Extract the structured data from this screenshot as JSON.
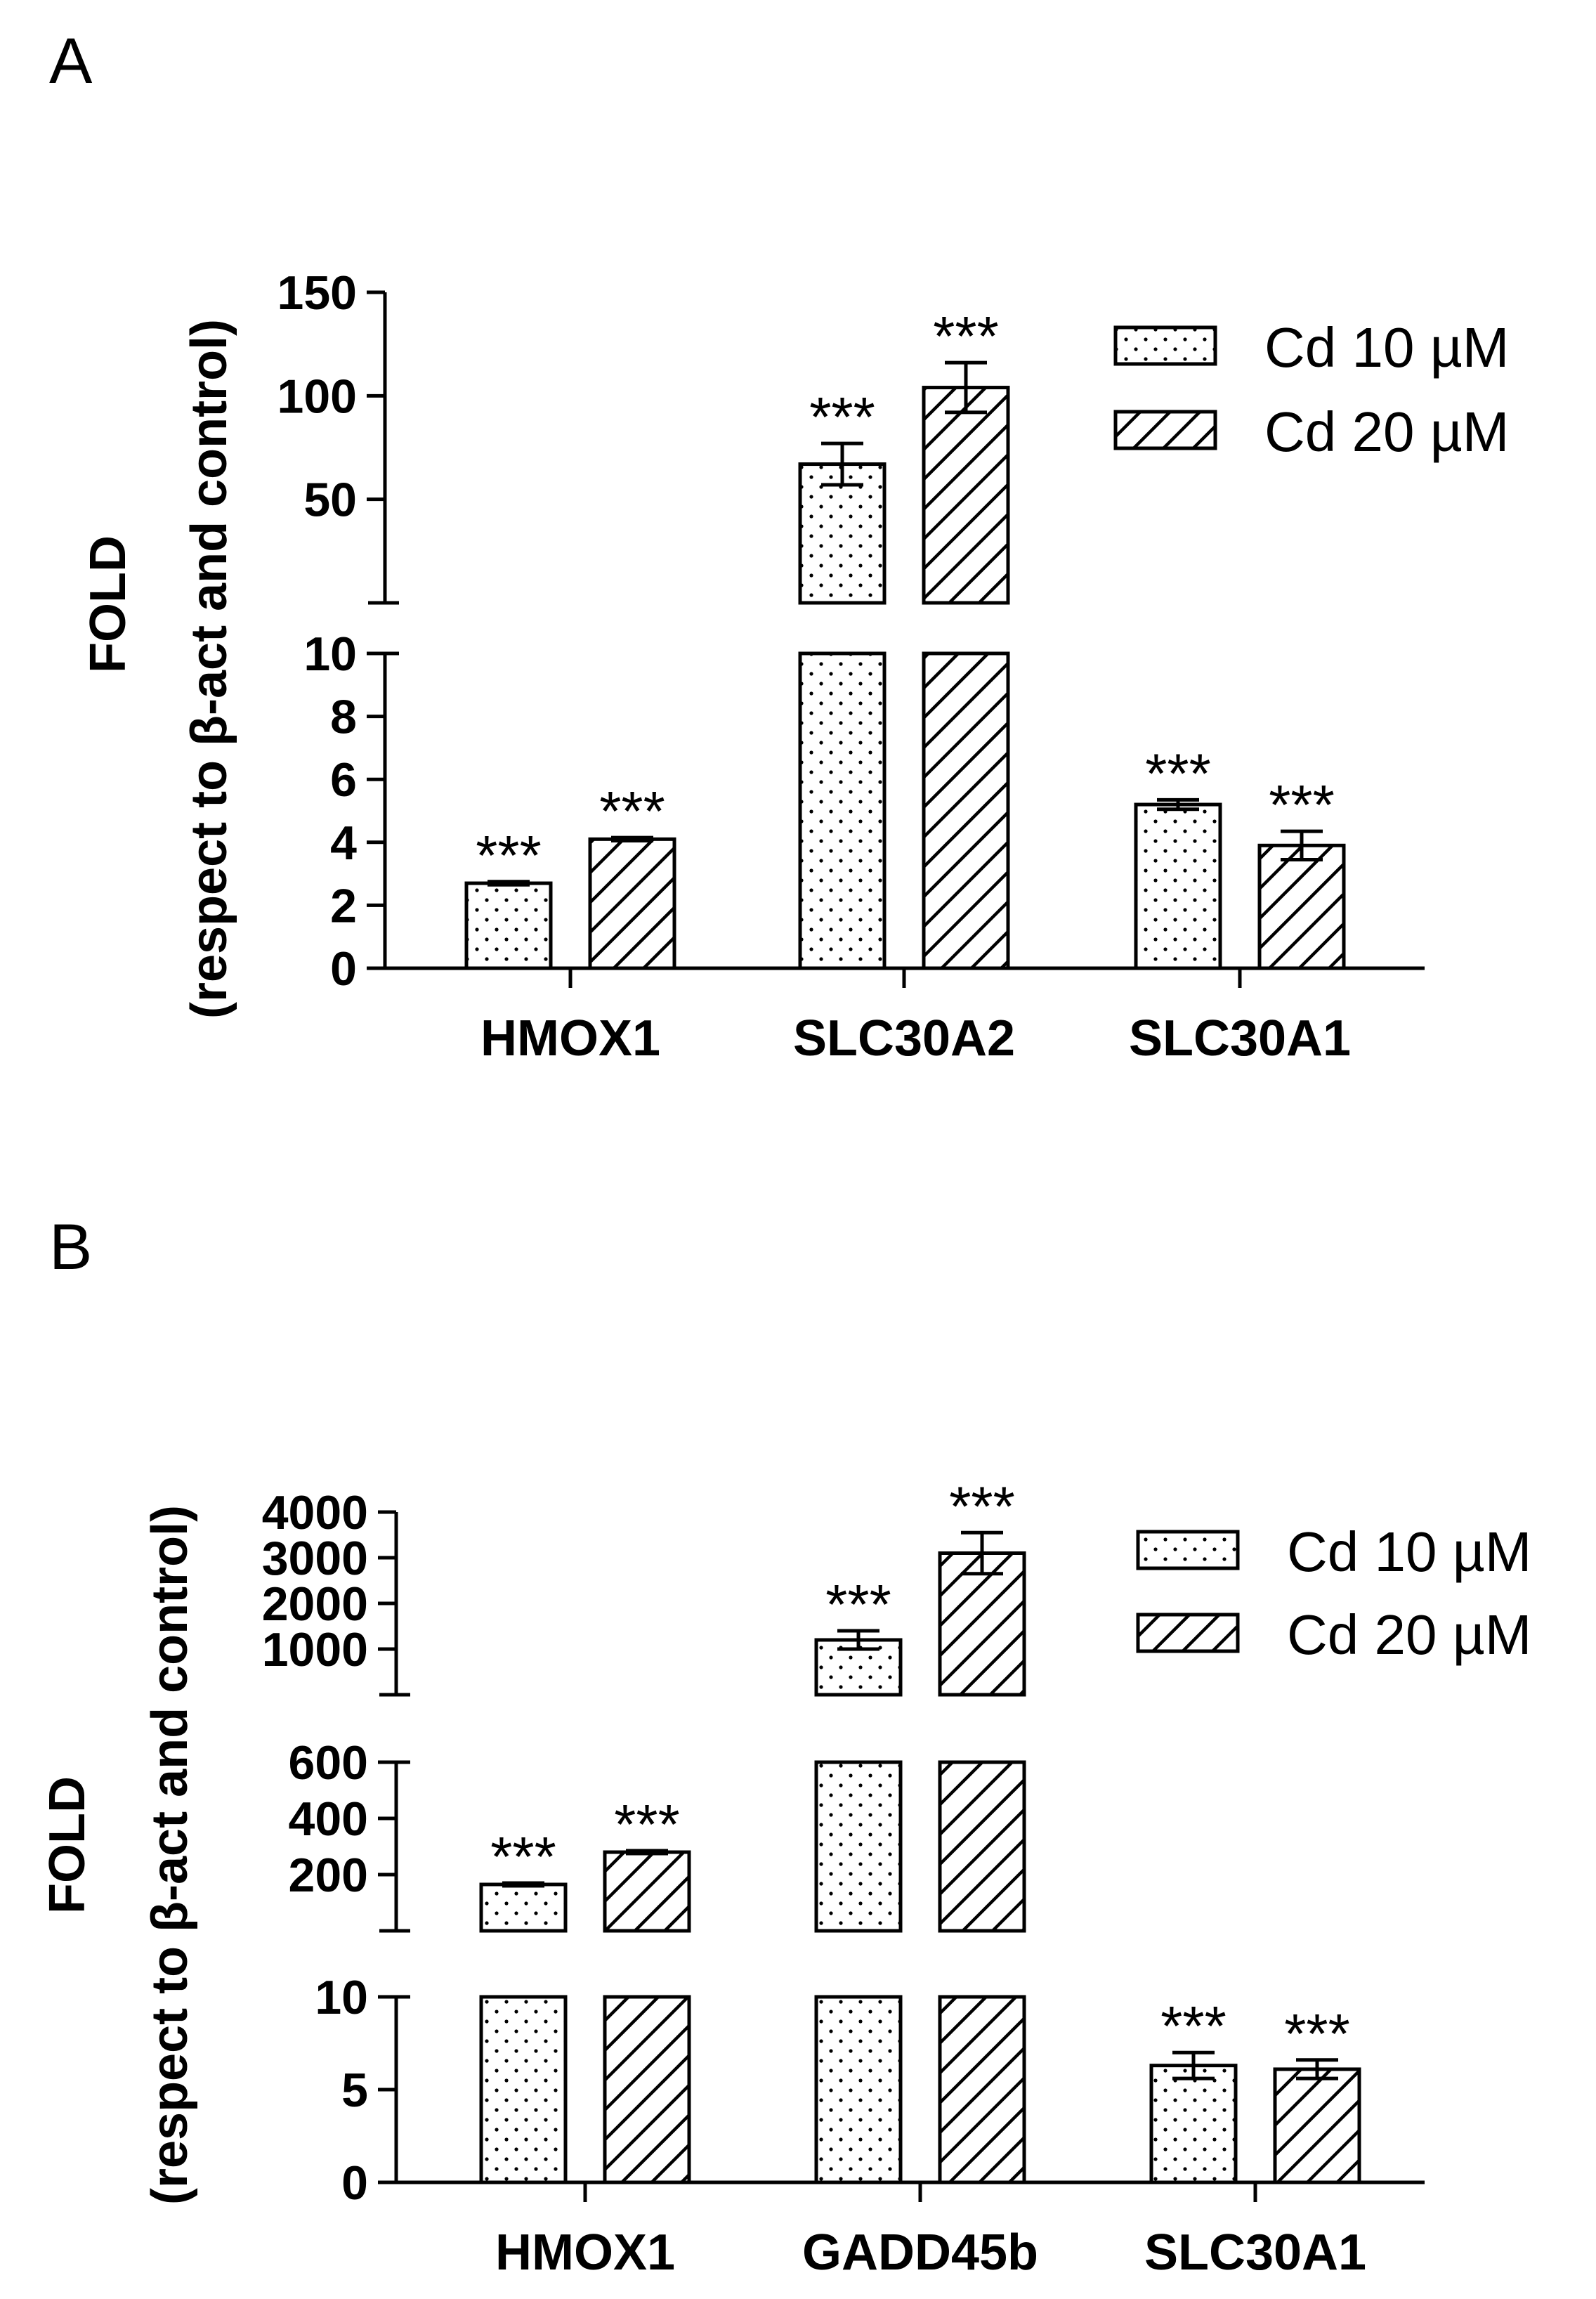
{
  "chart_data": [
    {
      "type": "bar",
      "panel_label": "A",
      "ylabel_line1": "FOLD",
      "ylabel_line2": "(respect to β-act and control)",
      "categories": [
        "HMOX1",
        "SLC30A2",
        "SLC30A1"
      ],
      "segments": [
        {
          "range": [
            0,
            10
          ],
          "ticks": [
            0,
            2,
            4,
            6,
            8,
            10
          ]
        },
        {
          "range": [
            0,
            150
          ],
          "ticks": [
            50,
            100,
            150
          ]
        }
      ],
      "series": [
        {
          "name": "Cd 10 µM",
          "pattern": "dots",
          "values": [
            2.7,
            67,
            5.2
          ],
          "errors": [
            0.05,
            10,
            0.15
          ],
          "significance": [
            "***",
            "***",
            "***"
          ]
        },
        {
          "name": "Cd 20 µM",
          "pattern": "hatch",
          "values": [
            4.1,
            104,
            3.9
          ],
          "errors": [
            0.05,
            12,
            0.45
          ],
          "significance": [
            "***",
            "***",
            "***"
          ]
        }
      ],
      "legend_position": "top-right"
    },
    {
      "type": "bar",
      "panel_label": "B",
      "ylabel_line1": "FOLD",
      "ylabel_line2": "(respect to β-act and control)",
      "categories": [
        "HMOX1",
        "GADD45b",
        "SLC30A1"
      ],
      "segments": [
        {
          "range": [
            0,
            10
          ],
          "ticks": [
            0,
            5,
            10
          ]
        },
        {
          "range": [
            0,
            600
          ],
          "ticks": [
            200,
            400,
            600
          ]
        },
        {
          "range": [
            0,
            4000
          ],
          "ticks": [
            1000,
            2000,
            3000,
            4000
          ]
        }
      ],
      "series": [
        {
          "name": "Cd 10 µM",
          "pattern": "dots",
          "values": [
            165,
            1200,
            6.3
          ],
          "errors": [
            5,
            200,
            0.7
          ],
          "significance": [
            "***",
            "***",
            "***"
          ]
        },
        {
          "name": "Cd 20 µM",
          "pattern": "hatch",
          "values": [
            280,
            3100,
            6.1
          ],
          "errors": [
            5,
            450,
            0.5
          ],
          "significance": [
            "***",
            "***",
            "***"
          ]
        }
      ],
      "legend_position": "top-right"
    }
  ]
}
